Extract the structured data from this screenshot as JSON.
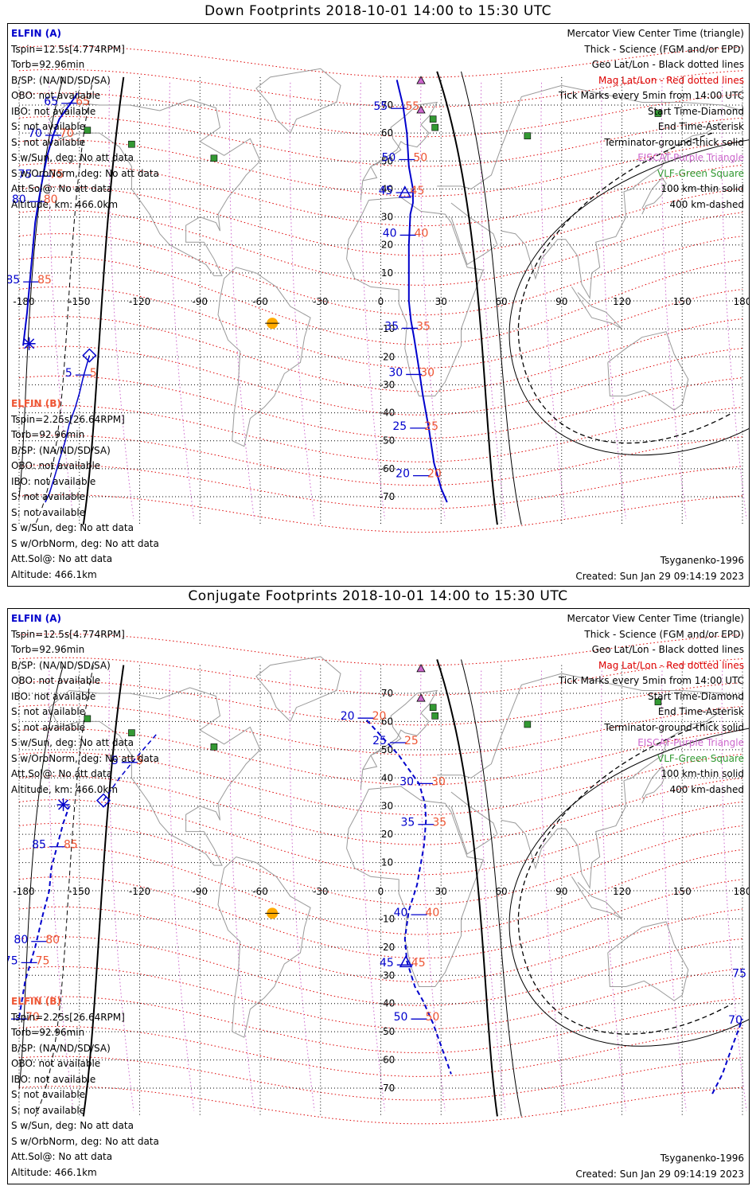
{
  "colors": {
    "elfin_a": "#0000cc",
    "elfin_b": "#ee5533",
    "mag_grid": "#dd0000",
    "eiscat": "#cc66cc",
    "vlf": "#339933",
    "sun": "#ffaa00"
  },
  "info_a": [
    "ELFIN (A)",
    "Tspin=12.5s[4.774RPM]",
    "Torb=92.96min",
    "B/SP: (NA/ND/SD/SA)",
    "OBO: not available",
    "IBO: not available",
    "S: not available",
    "S: not available",
    "S w/Sun, deg: No att data",
    "S w/OrbNorm, deg: No att data",
    "Att.Sol@: No att data",
    "Altitude, km: 466.0km"
  ],
  "info_b": [
    "ELFIN (B)",
    "Tspin=2.25s[26.64RPM]",
    "Torb=92.96min",
    "B/SP: (NA/ND/SD/SA)",
    "OBO: not available",
    "IBO: not available",
    "S: not available",
    "S: not available",
    "S w/Sun, deg: No att data",
    "S w/OrbNorm, deg: No att data",
    "Att.Sol@: No att data",
    "Altitude: 466.1km"
  ],
  "legend": [
    {
      "text": "Mercator View Center Time (triangle)",
      "color": "#000000"
    },
    {
      "text": "Thick - Science (FGM and/or EPD)",
      "color": "#000000"
    },
    {
      "text": "Geo Lat/Lon - Black dotted lines",
      "color": "#000000"
    },
    {
      "text": "Mag Lat/Lon - Red dotted lines",
      "color": "#dd0000"
    },
    {
      "text": "Tick Marks every 5min from 14:00 UTC",
      "color": "#000000"
    },
    {
      "text": "Start Time-Diamond",
      "color": "#000000"
    },
    {
      "text": "End Time-Asterisk",
      "color": "#000000"
    },
    {
      "text": "Terminator-ground-thick solid",
      "color": "#000000"
    },
    {
      "text": "EISCAT-Purple Triangle",
      "color": "#cc66cc"
    },
    {
      "text": "VLF-Green Square",
      "color": "#339933"
    },
    {
      "text": "100 km-thin solid",
      "color": "#000000"
    },
    {
      "text": "400 km-dashed",
      "color": "#000000"
    }
  ],
  "footer": {
    "model": "Tsyganenko-1996",
    "created": "Created: Sun Jan 29 09:14:19 2023"
  },
  "axes": {
    "lon_labels": [
      "-180",
      "-150",
      "-120",
      "-90",
      "-60",
      "-30",
      "0",
      "30",
      "60",
      "90",
      "120",
      "150",
      "180"
    ],
    "lat_labels": [
      "70",
      "60",
      "50",
      "40",
      "30",
      "20",
      "10",
      "0",
      "-10",
      "-20",
      "-30",
      "-40",
      "-50",
      "-60",
      "-70"
    ]
  },
  "panels": [
    {
      "title": "Down Footprints 2018-10-01 14:00 to 15:30 UTC",
      "track_style": "solid",
      "elfin_a_track": [
        [
          -151,
          74.2
        ],
        [
          -154,
          71
        ],
        [
          -157,
          68
        ],
        [
          -160,
          65
        ],
        [
          -163,
          59.3
        ],
        [
          -166,
          52
        ],
        [
          -168,
          45
        ],
        [
          -170,
          37
        ],
        [
          -172,
          28
        ],
        [
          -173,
          20
        ],
        [
          -174,
          12
        ],
        [
          -175,
          4
        ],
        [
          -176,
          -4
        ],
        [
          -178,
          -16
        ]
      ],
      "elfin_a_ticks": [
        {
          "lon": -155,
          "lat": 70.6,
          "label": "65"
        },
        {
          "lon": -163,
          "lat": 59.2,
          "label": "70"
        },
        {
          "lon": -168,
          "lat": 44.6,
          "label": "75"
        },
        {
          "lon": -171,
          "lat": 35.5,
          "label": "80"
        },
        {
          "lon": -174,
          "lat": 6.8,
          "label": "85"
        }
      ],
      "elfin_a_end": [
        -175,
        -15.3
      ],
      "elfin_a_track2": [
        [
          8,
          79
        ],
        [
          11,
          70
        ],
        [
          13,
          60
        ],
        [
          14,
          48
        ],
        [
          16,
          40
        ],
        [
          16,
          35
        ],
        [
          14.7,
          31
        ],
        [
          14,
          20
        ],
        [
          14,
          0
        ],
        [
          15,
          -7
        ],
        [
          16.5,
          -13
        ],
        [
          18.5,
          -22
        ],
        [
          21,
          -34
        ],
        [
          24,
          -46
        ],
        [
          26.5,
          -58
        ],
        [
          30,
          -67
        ],
        [
          33,
          -72
        ]
      ],
      "elfin_a_ticks2": [
        {
          "lon": 9,
          "lat": 68.8,
          "label": "55"
        },
        {
          "lon": 13,
          "lat": 50.5,
          "label": "50"
        },
        {
          "lon": 11.5,
          "lat": 38.7,
          "label": "45"
        },
        {
          "lon": 13.5,
          "lat": 23.5,
          "label": "40"
        },
        {
          "lon": 14.5,
          "lat": -9.8,
          "label": "35"
        },
        {
          "lon": 16.5,
          "lat": -26.3,
          "label": "30"
        },
        {
          "lon": 18.5,
          "lat": -45.5,
          "label": "25"
        },
        {
          "lon": 20,
          "lat": -62.5,
          "label": "20"
        }
      ],
      "elfin_b_track": [
        [
          -145,
          -19.5
        ],
        [
          -148,
          -27
        ],
        [
          -150,
          -33
        ],
        [
          -152,
          -38
        ],
        [
          -155,
          -44
        ],
        [
          -157,
          -50
        ],
        [
          -160,
          -57
        ],
        [
          -162,
          -62
        ],
        [
          -165,
          -69
        ],
        [
          -167,
          -72
        ]
      ],
      "elfin_b_ticks": [
        {
          "lon": -148,
          "lat": -26.5,
          "label": "5"
        }
      ],
      "elfin_b_start": [
        -145,
        -19.5
      ],
      "center_triangle": [
        12,
        38.5
      ],
      "sun": [
        -54,
        -8
      ]
    },
    {
      "title": "Conjugate Footprints 2018-10-01 14:00 to 15:30 UTC",
      "track_style": "dashed",
      "elfin_a_track": [
        [
          -180,
          -45
        ],
        [
          -177,
          -32
        ],
        [
          -172,
          -20
        ],
        [
          -168,
          -8
        ],
        [
          -165,
          0
        ],
        [
          -164,
          8
        ],
        [
          -161,
          16
        ],
        [
          -158,
          24
        ],
        [
          -155,
          30
        ]
      ],
      "elfin_a_ticks": [
        {
          "lon": -161,
          "lat": 15.6,
          "label": "85"
        },
        {
          "lon": -170,
          "lat": -18,
          "label": "80"
        },
        {
          "lon": -175,
          "lat": -25.5,
          "label": "75"
        },
        {
          "lon": -180,
          "lat": -45.5,
          "label": "70"
        }
      ],
      "elfin_a_end": [
        -158,
        30.5
      ],
      "elfin_a_track2": [
        [
          -7,
          60.5
        ],
        [
          0,
          55
        ],
        [
          9,
          48
        ],
        [
          13,
          44
        ],
        [
          19,
          38
        ],
        [
          22,
          31
        ],
        [
          22.5,
          25
        ],
        [
          21.5,
          16
        ],
        [
          18,
          2
        ],
        [
          14,
          -7
        ],
        [
          12,
          -17
        ],
        [
          13,
          -25
        ],
        [
          17,
          -34
        ],
        [
          21,
          -39
        ],
        [
          26,
          -47
        ],
        [
          30,
          -55
        ],
        [
          35,
          -65
        ]
      ],
      "elfin_a_ticks2": [
        {
          "lon": -7.5,
          "lat": 61.2,
          "label": "20"
        },
        {
          "lon": 8.5,
          "lat": 52.5,
          "label": "25"
        },
        {
          "lon": 22,
          "lat": 38,
          "label": "30"
        },
        {
          "lon": 22.5,
          "lat": 23.5,
          "label": "35"
        },
        {
          "lon": 19,
          "lat": -8.5,
          "label": "40"
        },
        {
          "lon": 12,
          "lat": -26.3,
          "label": "45"
        },
        {
          "lon": 19,
          "lat": -45.5,
          "label": "50"
        }
      ],
      "elfin_b_track": [
        [
          -138,
          32
        ],
        [
          -130,
          40
        ],
        [
          -122,
          47
        ],
        [
          -111,
          56
        ]
      ],
      "elfin_b_ticks": [
        {
          "lon": -125,
          "lat": 45.5,
          "label": "5"
        }
      ],
      "elfin_b_start": [
        -138,
        32
      ],
      "elfin_a_track3": [
        [
          165,
          -72
        ],
        [
          170,
          -65
        ],
        [
          175,
          -55
        ],
        [
          180,
          -45.5
        ]
      ],
      "elfin_a_ticks3": [
        {
          "lon": 180,
          "lat": -45.5,
          "label": "70"
        },
        {
          "lon": 183,
          "lat": -29,
          "label": "75"
        }
      ],
      "center_triangle": [
        12.5,
        -25.5
      ],
      "sun": [
        -54,
        -8
      ]
    }
  ]
}
